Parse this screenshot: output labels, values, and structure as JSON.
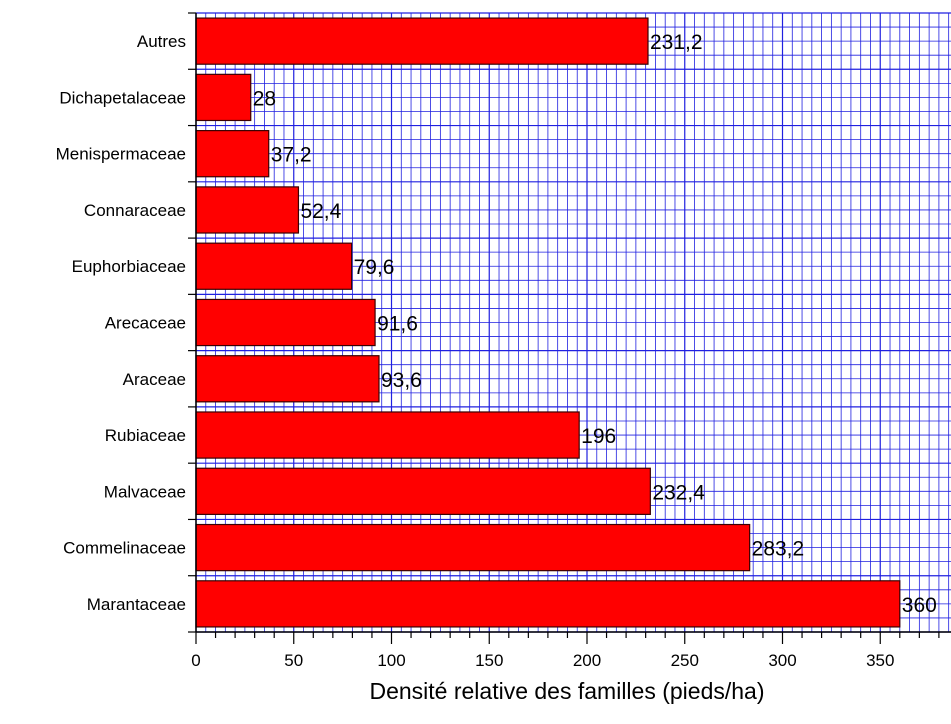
{
  "chart_data": {
    "type": "bar",
    "orientation": "horizontal",
    "categories": [
      "Autres",
      "Dichapetalaceae",
      "Menispermaceae",
      "Connaraceae",
      "Euphorbiaceae",
      "Arecaceae",
      "Araceae",
      "Rubiaceae",
      "Malvaceae",
      "Commelinaceae",
      "Marantaceae"
    ],
    "values": [
      231.2,
      28,
      37.2,
      52.4,
      79.6,
      91.6,
      93.6,
      196,
      232.4,
      283.2,
      360
    ],
    "data_labels": [
      "231,2",
      "28",
      "37,2",
      "52,4",
      "79,6",
      "91,6",
      "93,6",
      "196",
      "232,4",
      "283,2",
      "360"
    ],
    "xlabel": "Densité relative des familles (pieds/ha)",
    "ylabel": "",
    "title": "",
    "xlim": [
      0,
      385
    ],
    "x_ticks": [
      0,
      50,
      100,
      150,
      200,
      250,
      300,
      350
    ],
    "x_tick_labels": [
      "0",
      "50",
      "100",
      "150",
      "200",
      "250",
      "300",
      "350"
    ],
    "grid": true,
    "colors": {
      "bar": "#ff0000",
      "bar_edge": "#3a0000",
      "grid": "#2020e0",
      "axis": "#000000"
    }
  }
}
